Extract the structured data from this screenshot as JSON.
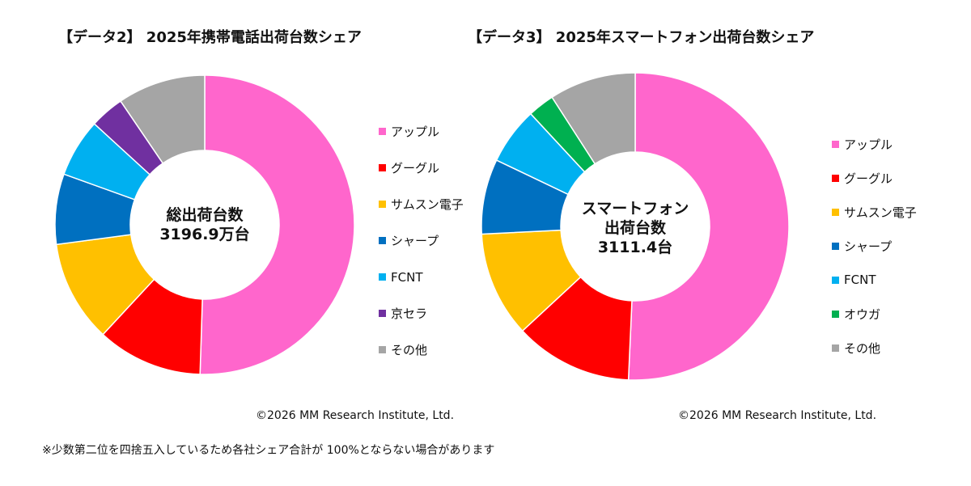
{
  "chart_data": [
    {
      "type": "pie",
      "title": "【データ2】 2025年携帯電話出荷台数シェア",
      "center_label": [
        "総出荷台数",
        "3196.9万台"
      ],
      "categories": [
        "アップル",
        "グーグル",
        "サムスン電子",
        "シャープ",
        "FCNT",
        "京セラ",
        "その他"
      ],
      "values": [
        50.5,
        11.4,
        11.0,
        7.6,
        6.3,
        3.7,
        9.5
      ],
      "unit": "%",
      "colors": [
        "#ff66cc",
        "#ff0000",
        "#ffc000",
        "#0070c0",
        "#00b0f0",
        "#7030a0",
        "#a5a5a5"
      ],
      "donut": true,
      "legend": "right",
      "copyright": "©2026 MM Research Institute, Ltd."
    },
    {
      "type": "pie",
      "title": "【データ3】 2025年スマートフォン出荷台数シェア",
      "center_label": [
        "スマートフォン",
        "出荷台数",
        "3111.4台"
      ],
      "categories": [
        "アップル",
        "グーグル",
        "サムスン電子",
        "シャープ",
        "FCNT",
        "オウガ",
        "その他"
      ],
      "values": [
        50.7,
        12.4,
        11.1,
        7.9,
        6.0,
        2.8,
        9.1
      ],
      "unit": "%",
      "colors": [
        "#ff66cc",
        "#ff0000",
        "#ffc000",
        "#0070c0",
        "#00b0f0",
        "#00b050",
        "#a5a5a5"
      ],
      "donut": true,
      "legend": "right",
      "copyright": "©2026 MM Research Institute, Ltd."
    }
  ],
  "footnote": "※少数第二位を四捨五入しているため各社シェア合計が 100%とならない場合があります"
}
